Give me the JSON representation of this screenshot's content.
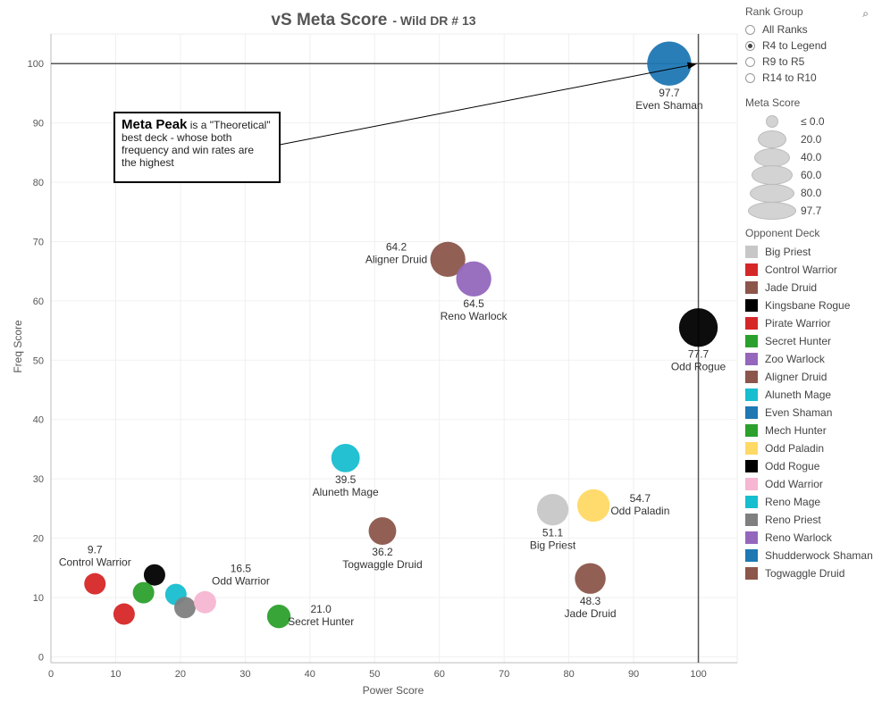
{
  "title": "vS Meta Score",
  "subtitle": "- Wild DR # 13",
  "chart_data": {
    "type": "scatter",
    "xlabel": "Power Score",
    "ylabel": "Freq Score",
    "xlim": [
      0,
      106
    ],
    "ylim": [
      -1,
      105
    ],
    "x_ticks": [
      0,
      10,
      20,
      30,
      40,
      50,
      60,
      70,
      80,
      90,
      100
    ],
    "y_ticks": [
      0,
      10,
      20,
      30,
      40,
      50,
      60,
      70,
      80,
      90,
      100
    ],
    "reference_lines": {
      "x": 100,
      "y": 100
    },
    "points": [
      {
        "deck": "Even Shaman",
        "x": 95.5,
        "y": 100.0,
        "meta_score": 97.7,
        "label": "97.7",
        "name_label": "Even Shaman",
        "color": "#1f77b4"
      },
      {
        "deck": "Aligner Druid",
        "x": 61.3,
        "y": 67.0,
        "meta_score": 64.2,
        "label": "64.2",
        "name_label": "Aligner Druid",
        "color": "#8c564b"
      },
      {
        "deck": "Reno Warlock",
        "x": 65.3,
        "y": 63.7,
        "meta_score": 64.5,
        "label": "64.5",
        "name_label": "Reno Warlock",
        "color": "#9467bd"
      },
      {
        "deck": "Odd Rogue",
        "x": 100.0,
        "y": 55.5,
        "meta_score": 77.7,
        "label": "77.7",
        "name_label": "Odd Rogue",
        "color": "#000000"
      },
      {
        "deck": "Aluneth Mage",
        "x": 45.5,
        "y": 33.5,
        "meta_score": 39.5,
        "label": "39.5",
        "name_label": "Aluneth Mage",
        "color": "#17becf"
      },
      {
        "deck": "Odd Paladin",
        "x": 83.8,
        "y": 25.5,
        "meta_score": 54.7,
        "label": "54.7",
        "name_label": "Odd Paladin",
        "color": "#ffd966"
      },
      {
        "deck": "Big Priest",
        "x": 77.5,
        "y": 24.8,
        "meta_score": 51.1,
        "label": "51.1",
        "name_label": "Big Priest",
        "color": "#c7c7c7"
      },
      {
        "deck": "Togwaggle Druid",
        "x": 51.2,
        "y": 21.2,
        "meta_score": 36.2,
        "label": "36.2",
        "name_label": "Togwaggle Druid",
        "color": "#8c564b"
      },
      {
        "deck": "Jade Druid",
        "x": 83.3,
        "y": 13.2,
        "meta_score": 48.3,
        "label": "48.3",
        "name_label": "Jade Druid",
        "color": "#8c564b"
      },
      {
        "deck": "Control Warrior",
        "x": 6.8,
        "y": 12.3,
        "meta_score": 9.7,
        "label": "9.7",
        "name_label": "Control Warrior",
        "color": "#d62728"
      },
      {
        "deck": "Kingsbane Rogue",
        "x": 16.0,
        "y": 13.8,
        "meta_score": null,
        "label": "",
        "name_label": "",
        "color": "#000000"
      },
      {
        "deck": "Mech Hunter",
        "x": 14.3,
        "y": 10.8,
        "meta_score": null,
        "label": "",
        "name_label": "",
        "color": "#2ca02c"
      },
      {
        "deck": "Reno Mage",
        "x": 19.3,
        "y": 10.5,
        "meta_score": null,
        "label": "",
        "name_label": "",
        "color": "#17becf"
      },
      {
        "deck": "Reno Priest",
        "x": 20.7,
        "y": 8.3,
        "meta_score": null,
        "label": "",
        "name_label": "",
        "color": "#7f7f7f"
      },
      {
        "deck": "Odd Warrior",
        "x": 23.8,
        "y": 9.2,
        "meta_score": 16.5,
        "label": "16.5",
        "name_label": "Odd Warrior",
        "color": "#f7b6d2"
      },
      {
        "deck": "Pirate Warrior",
        "x": 11.3,
        "y": 7.2,
        "meta_score": null,
        "label": "",
        "name_label": "",
        "color": "#d62728"
      },
      {
        "deck": "Secret Hunter",
        "x": 35.2,
        "y": 6.8,
        "meta_score": 21.0,
        "label": "21.0",
        "name_label": "Secret Hunter",
        "color": "#2ca02c"
      }
    ]
  },
  "annotation": {
    "bold": "Meta Peak",
    "text": "is a \"Theoretical\" best deck - whose both frequency and win rates are the highest"
  },
  "rank_group": {
    "title": "Rank Group",
    "options": [
      "All Ranks",
      "R4 to Legend",
      "R9 to R5",
      "R14 to R10"
    ],
    "selected": "R4 to Legend"
  },
  "meta_score_legend": {
    "title": "Meta Score",
    "items": [
      "≤ 0.0",
      "20.0",
      "40.0",
      "60.0",
      "80.0",
      "97.7"
    ]
  },
  "opponent_deck_legend": {
    "title": "Opponent Deck",
    "items": [
      {
        "name": "Big Priest",
        "color": "#c7c7c7"
      },
      {
        "name": "Control Warrior",
        "color": "#d62728"
      },
      {
        "name": "Jade Druid",
        "color": "#8c564b"
      },
      {
        "name": "Kingsbane Rogue",
        "color": "#000000"
      },
      {
        "name": "Pirate Warrior",
        "color": "#d62728"
      },
      {
        "name": "Secret Hunter",
        "color": "#2ca02c"
      },
      {
        "name": "Zoo Warlock",
        "color": "#9467bd"
      },
      {
        "name": "Aligner Druid",
        "color": "#8c564b"
      },
      {
        "name": "Aluneth Mage",
        "color": "#17becf"
      },
      {
        "name": "Even Shaman",
        "color": "#1f77b4"
      },
      {
        "name": "Mech Hunter",
        "color": "#2ca02c"
      },
      {
        "name": "Odd Paladin",
        "color": "#ffd966"
      },
      {
        "name": "Odd Rogue",
        "color": "#000000"
      },
      {
        "name": "Odd Warrior",
        "color": "#f7b6d2"
      },
      {
        "name": "Reno Mage",
        "color": "#17becf"
      },
      {
        "name": "Reno Priest",
        "color": "#7f7f7f"
      },
      {
        "name": "Reno Warlock",
        "color": "#9467bd"
      },
      {
        "name": "Shudderwock Shaman",
        "color": "#1f77b4"
      },
      {
        "name": "Togwaggle Druid",
        "color": "#8c564b"
      }
    ]
  }
}
